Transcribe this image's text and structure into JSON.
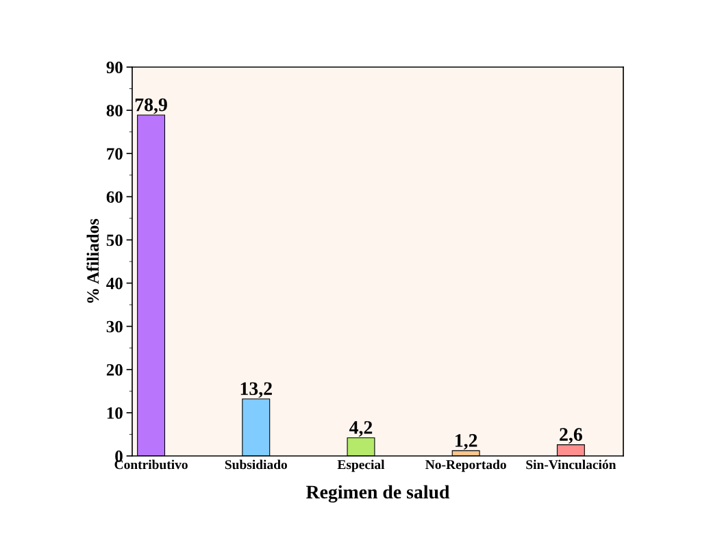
{
  "chart_data": {
    "type": "bar",
    "xlabel": "Regimen de salud",
    "ylabel": "% Afiliados",
    "categories": [
      "Contributivo",
      "Subsidiado",
      "Especial",
      "No-Reportado",
      "Sin-Vinculación"
    ],
    "values": [
      78.9,
      13.2,
      4.2,
      1.2,
      2.6
    ],
    "colors": [
      "#b976fc",
      "#80ccff",
      "#b5e96a",
      "#ffc58f",
      "#ff8f8f"
    ],
    "value_labels": [
      "78,9",
      "13,2",
      "4,2",
      "1,2",
      "2,6"
    ],
    "ylim": [
      0,
      90
    ],
    "yticks": [
      0,
      10,
      20,
      30,
      40,
      50,
      60,
      70,
      80,
      90
    ],
    "grid": false,
    "legend": false
  }
}
